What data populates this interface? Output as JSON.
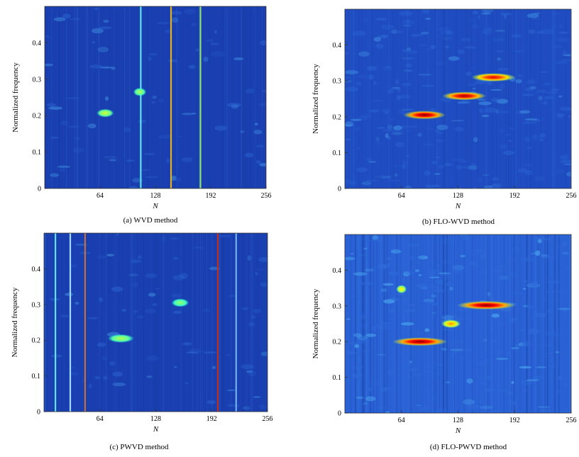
{
  "chart_data": [
    {
      "type": "heatmap",
      "caption": "(a) WVD method",
      "xlabel": "N",
      "ylabel": "Normalized frequency",
      "xlim": [
        0,
        256
      ],
      "ylim": [
        0,
        0.5
      ],
      "xticks": [
        "64",
        "128",
        "192",
        "256"
      ],
      "yticks": [
        "0",
        "0.1",
        "0.2",
        "0.3",
        "0.4"
      ],
      "colormap": "jet",
      "background_color": "#1a3fb0",
      "vertical_lines": [
        {
          "x": 111,
          "color": "#5fe3e8"
        },
        {
          "x": 146,
          "color": "#e0b020"
        },
        {
          "x": 180,
          "color": "#8ee070"
        }
      ],
      "blobs": [
        {
          "x": 70,
          "y": 0.207,
          "w": 20,
          "intensity": 0.35
        },
        {
          "x": 110,
          "y": 0.265,
          "w": 15,
          "intensity": 0.3
        }
      ]
    },
    {
      "type": "heatmap",
      "caption": "(b) FLO-WVD method",
      "xlabel": "N",
      "ylabel": "Normalized frequency",
      "xlim": [
        0,
        256
      ],
      "ylim": [
        0,
        0.5
      ],
      "xticks": [
        "64",
        "128",
        "192",
        "256"
      ],
      "yticks": [
        "0",
        "0.1",
        "0.2",
        "0.3",
        "0.4"
      ],
      "colormap": "jet",
      "background_color": "#1f4cc0",
      "vertical_lines": [],
      "blobs": [
        {
          "x": 90,
          "y": 0.205,
          "w": 48,
          "intensity": 1.0
        },
        {
          "x": 135,
          "y": 0.258,
          "w": 50,
          "intensity": 0.95
        },
        {
          "x": 168,
          "y": 0.31,
          "w": 50,
          "intensity": 0.85
        }
      ]
    },
    {
      "type": "heatmap",
      "caption": "(c) PWVD method",
      "xlabel": "N",
      "ylabel": "Normalized frequency",
      "xlim": [
        0,
        256
      ],
      "ylim": [
        0,
        0.5
      ],
      "xticks": [
        "64",
        "128",
        "192",
        "256"
      ],
      "yticks": [
        "0",
        "0.1",
        "0.2",
        "0.3",
        "0.4"
      ],
      "colormap": "jet",
      "background_color": "#1a3fb0",
      "vertical_lines": [
        {
          "x": 13,
          "color": "#5fe3e8"
        },
        {
          "x": 30,
          "color": "#9fd8f0"
        },
        {
          "x": 47,
          "color": "#c07040"
        },
        {
          "x": 199,
          "color": "#c03020"
        },
        {
          "x": 220,
          "color": "#6cb0f0"
        }
      ],
      "blobs": [
        {
          "x": 88,
          "y": 0.205,
          "w": 30,
          "intensity": 0.3
        },
        {
          "x": 156,
          "y": 0.305,
          "w": 20,
          "intensity": 0.25
        }
      ]
    },
    {
      "type": "heatmap",
      "caption": "(d) FLO-PWVD method",
      "xlabel": "N",
      "ylabel": "Normalized frequency",
      "xlim": [
        0,
        256
      ],
      "ylim": [
        0,
        0.5
      ],
      "xticks": [
        "64",
        "128",
        "192",
        "256"
      ],
      "yticks": [
        "0",
        "0.1",
        "0.2",
        "0.3",
        "0.4"
      ],
      "colormap": "jet",
      "background_color": "#2a62d6",
      "vertical_lines": [],
      "blobs": [
        {
          "x": 85,
          "y": 0.2,
          "w": 62,
          "intensity": 1.0
        },
        {
          "x": 160,
          "y": 0.302,
          "w": 66,
          "intensity": 1.0
        },
        {
          "x": 120,
          "y": 0.25,
          "w": 22,
          "intensity": 0.6
        },
        {
          "x": 64,
          "y": 0.347,
          "w": 12,
          "intensity": 0.45
        }
      ]
    }
  ]
}
